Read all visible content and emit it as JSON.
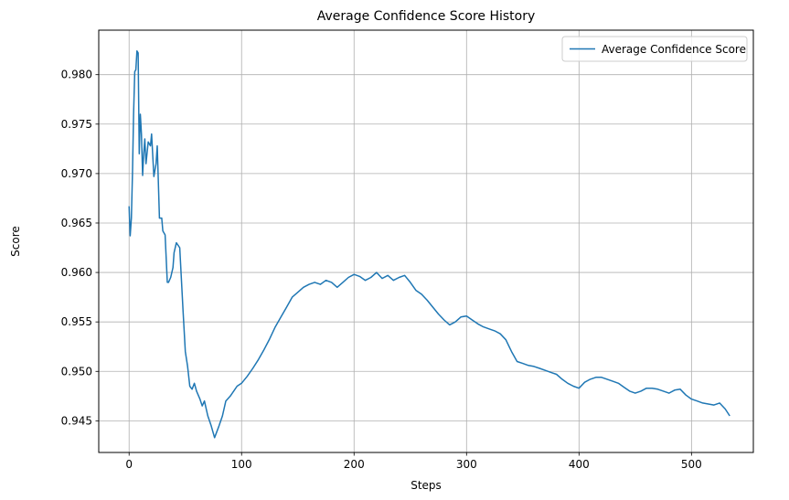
{
  "chart_data": {
    "type": "line",
    "title": "Average Confidence Score History",
    "xlabel": "Steps",
    "ylabel": "Score",
    "xlim": [
      -27,
      555
    ],
    "ylim": [
      0.9418,
      0.9845
    ],
    "x_ticks": [
      0,
      100,
      200,
      300,
      400,
      500
    ],
    "y_ticks": [
      0.945,
      0.95,
      0.955,
      0.96,
      0.965,
      0.97,
      0.975,
      0.98
    ],
    "x_tick_labels": [
      "0",
      "100",
      "200",
      "300",
      "400",
      "500"
    ],
    "y_tick_labels": [
      "0.945",
      "0.950",
      "0.955",
      "0.960",
      "0.965",
      "0.970",
      "0.975",
      "0.980"
    ],
    "grid": true,
    "legend_position": "top-right",
    "colors": {
      "series": "#1f77b4",
      "grid": "#b0b0b0",
      "axes": "#000000"
    },
    "series": [
      {
        "name": "Average Confidence Score",
        "x": [
          0,
          1,
          2,
          3,
          4,
          5,
          6,
          7,
          8,
          9,
          10,
          11,
          12,
          13,
          14,
          15,
          17,
          19,
          20,
          22,
          24,
          25,
          27,
          29,
          30,
          32,
          34,
          35,
          37,
          39,
          40,
          42,
          45,
          48,
          50,
          52,
          54,
          56,
          58,
          60,
          63,
          65,
          67,
          70,
          73,
          76,
          80,
          83,
          86,
          90,
          93,
          96,
          100,
          105,
          110,
          115,
          120,
          125,
          130,
          135,
          140,
          145,
          150,
          155,
          160,
          165,
          170,
          175,
          180,
          185,
          190,
          195,
          200,
          205,
          210,
          215,
          220,
          225,
          230,
          235,
          240,
          245,
          250,
          255,
          260,
          265,
          270,
          275,
          280,
          285,
          290,
          295,
          300,
          305,
          310,
          315,
          320,
          325,
          330,
          335,
          340,
          345,
          350,
          355,
          360,
          365,
          370,
          375,
          380,
          385,
          390,
          395,
          400,
          405,
          410,
          415,
          420,
          425,
          430,
          435,
          440,
          445,
          450,
          455,
          460,
          465,
          470,
          475,
          480,
          485,
          490,
          495,
          500,
          505,
          510,
          515,
          520,
          525,
          530,
          534
        ],
        "y": [
          0.9667,
          0.9637,
          0.9655,
          0.97,
          0.976,
          0.9803,
          0.9805,
          0.9824,
          0.9822,
          0.972,
          0.976,
          0.974,
          0.9698,
          0.972,
          0.9735,
          0.971,
          0.9732,
          0.9728,
          0.974,
          0.9697,
          0.971,
          0.9728,
          0.9655,
          0.9655,
          0.9642,
          0.9638,
          0.959,
          0.959,
          0.9595,
          0.9605,
          0.962,
          0.963,
          0.9625,
          0.956,
          0.952,
          0.9505,
          0.9485,
          0.9482,
          0.9488,
          0.948,
          0.9472,
          0.9465,
          0.947,
          0.9455,
          0.9445,
          0.9433,
          0.9445,
          0.9455,
          0.947,
          0.9475,
          0.948,
          0.9485,
          0.9488,
          0.9495,
          0.9503,
          0.9512,
          0.9522,
          0.9533,
          0.9545,
          0.9555,
          0.9565,
          0.9575,
          0.958,
          0.9585,
          0.9588,
          0.959,
          0.9588,
          0.9592,
          0.959,
          0.9585,
          0.959,
          0.9595,
          0.9598,
          0.9596,
          0.9592,
          0.9595,
          0.96,
          0.9594,
          0.9597,
          0.9592,
          0.9595,
          0.9597,
          0.959,
          0.9582,
          0.9578,
          0.9572,
          0.9565,
          0.9558,
          0.9552,
          0.9547,
          0.955,
          0.9555,
          0.9556,
          0.9552,
          0.9548,
          0.9545,
          0.9543,
          0.9541,
          0.9538,
          0.9532,
          0.952,
          0.951,
          0.9508,
          0.9506,
          0.9505,
          0.9503,
          0.9501,
          0.9499,
          0.9497,
          0.9492,
          0.9488,
          0.9485,
          0.9483,
          0.9489,
          0.9492,
          0.9494,
          0.9494,
          0.9492,
          0.949,
          0.9488,
          0.9484,
          0.948,
          0.9478,
          0.948,
          0.9483,
          0.9483,
          0.9482,
          0.948,
          0.9478,
          0.9481,
          0.9482,
          0.9476,
          0.9472,
          0.947,
          0.9468,
          0.9467,
          0.9466,
          0.9468,
          0.9462,
          0.9455
        ]
      }
    ]
  }
}
